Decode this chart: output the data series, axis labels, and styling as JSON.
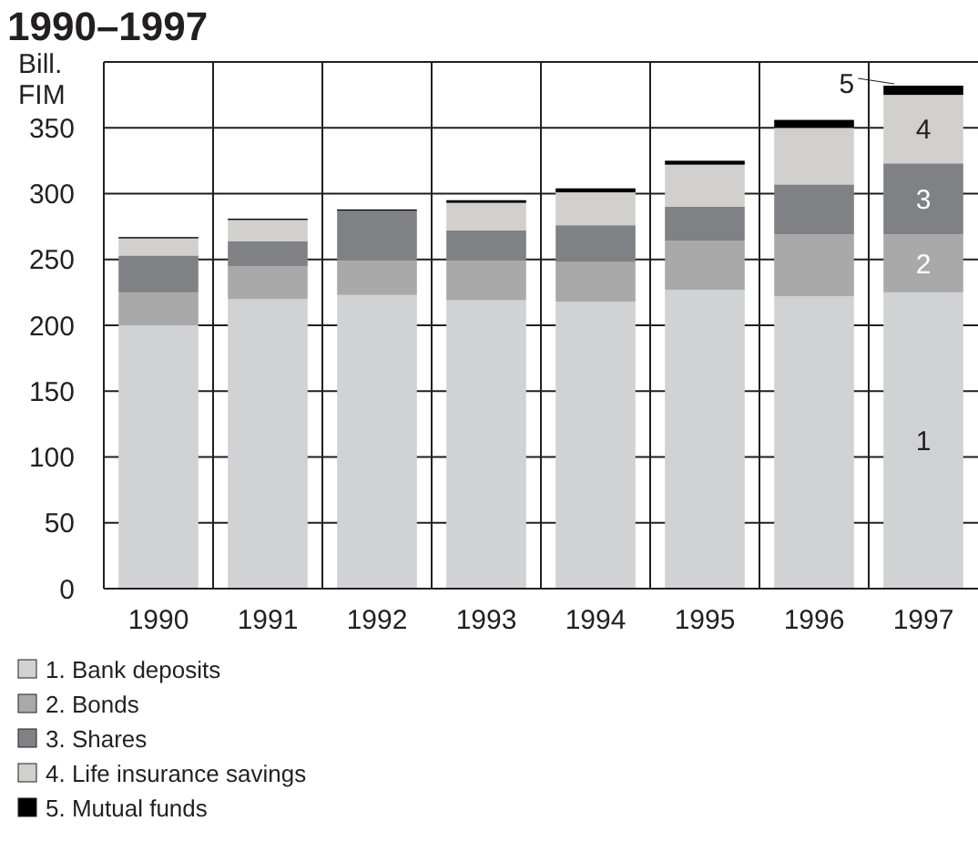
{
  "chart_data": {
    "type": "bar",
    "title": "1990–1997",
    "ylabel": "Bill.\nFIM",
    "stacked": true,
    "grid": true,
    "legend": "bottom",
    "categories": [
      "1990",
      "1991",
      "1992",
      "1993",
      "1994",
      "1995",
      "1996",
      "1997"
    ],
    "ylim": [
      0,
      400
    ],
    "yticks": [
      0,
      50,
      100,
      150,
      200,
      250,
      300,
      350,
      {
        "value": 400,
        "label": null
      }
    ],
    "series": [
      {
        "name": "1. Bank deposits",
        "color": "#d1d2d4",
        "values": [
          200,
          220,
          223,
          219,
          218,
          227,
          222,
          225
        ]
      },
      {
        "name": "2. Bonds",
        "color": "#a9a9aa",
        "values": [
          25,
          25,
          26,
          30,
          30,
          37,
          47,
          44
        ]
      },
      {
        "name": "3. Shares",
        "color": "#808184",
        "values": [
          28,
          19,
          38,
          23,
          28,
          26,
          38,
          54
        ]
      },
      {
        "name": "4. Life insurance savings",
        "color": "#d1d0ce",
        "values": [
          13,
          16,
          0,
          21,
          25,
          32,
          43,
          52
        ]
      },
      {
        "name": "5. Mutual funds",
        "color": "#000000",
        "values": [
          1,
          1,
          1,
          2,
          3,
          3,
          6,
          7
        ]
      }
    ],
    "annotations": [
      "1",
      "2",
      "3",
      "4",
      "5"
    ]
  }
}
